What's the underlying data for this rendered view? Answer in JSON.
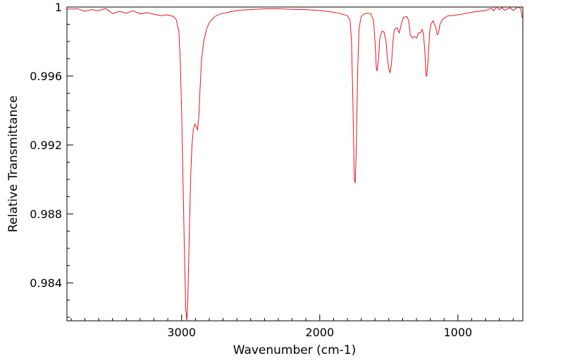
{
  "chart_data": {
    "type": "line",
    "title": "",
    "xlabel": "Wavenumber (cm-1)",
    "ylabel": "Relative Transmittance",
    "xlim": [
      3830,
      530
    ],
    "ylim": [
      0.9818,
      1.0
    ],
    "x_reversed": true,
    "grid": false,
    "legend": "none",
    "x_ticks": [
      3000,
      2000,
      1000
    ],
    "x_tick_labels": [
      "3000",
      "2000",
      "1000"
    ],
    "x_minor_step": 100,
    "y_ticks": [
      1.0,
      0.996,
      0.992,
      0.988,
      0.984
    ],
    "y_tick_labels": [
      "1",
      "0.996",
      "0.992",
      "0.988",
      "0.984"
    ],
    "y_minor_step": 0.001,
    "series": [
      {
        "color": "#e8141c",
        "points": [
          [
            3830,
            0.99988
          ],
          [
            3750,
            0.9999
          ],
          [
            3700,
            0.99975
          ],
          [
            3650,
            0.99985
          ],
          [
            3600,
            0.99978
          ],
          [
            3550,
            0.99992
          ],
          [
            3500,
            0.99962
          ],
          [
            3450,
            0.99975
          ],
          [
            3400,
            0.99965
          ],
          [
            3350,
            0.99978
          ],
          [
            3300,
            0.9996
          ],
          [
            3250,
            0.99968
          ],
          [
            3200,
            0.99958
          ],
          [
            3150,
            0.9995
          ],
          [
            3100,
            0.99955
          ],
          [
            3060,
            0.99945
          ],
          [
            3040,
            0.9993
          ],
          [
            3020,
            0.9986
          ],
          [
            3010,
            0.997
          ],
          [
            3000,
            0.994
          ],
          [
            2990,
            0.99
          ],
          [
            2980,
            0.986
          ],
          [
            2970,
            0.9825
          ],
          [
            2962,
            0.9818
          ],
          [
            2955,
            0.983
          ],
          [
            2945,
            0.9865
          ],
          [
            2935,
            0.99
          ],
          [
            2925,
            0.992
          ],
          [
            2915,
            0.9929
          ],
          [
            2905,
            0.9932
          ],
          [
            2895,
            0.9931
          ],
          [
            2885,
            0.99285
          ],
          [
            2875,
            0.9937
          ],
          [
            2865,
            0.9955
          ],
          [
            2855,
            0.997
          ],
          [
            2840,
            0.998
          ],
          [
            2820,
            0.9987
          ],
          [
            2800,
            0.9991
          ],
          [
            2760,
            0.99945
          ],
          [
            2720,
            0.9996
          ],
          [
            2650,
            0.99972
          ],
          [
            2600,
            0.9998
          ],
          [
            2500,
            0.99985
          ],
          [
            2400,
            0.9999
          ],
          [
            2300,
            0.9999
          ],
          [
            2200,
            0.99987
          ],
          [
            2100,
            0.99985
          ],
          [
            2000,
            0.9998
          ],
          [
            1900,
            0.9997
          ],
          [
            1850,
            0.99962
          ],
          [
            1800,
            0.9995
          ],
          [
            1780,
            0.9992
          ],
          [
            1770,
            0.998
          ],
          [
            1760,
            0.9945
          ],
          [
            1750,
            0.99
          ],
          [
            1743,
            0.9898
          ],
          [
            1735,
            0.992
          ],
          [
            1725,
            0.9965
          ],
          [
            1715,
            0.9988
          ],
          [
            1700,
            0.99945
          ],
          [
            1680,
            0.9996
          ],
          [
            1650,
            0.99965
          ],
          [
            1630,
            0.9996
          ],
          [
            1610,
            0.9992
          ],
          [
            1600,
            0.998
          ],
          [
            1590,
            0.9964
          ],
          [
            1585,
            0.9963
          ],
          [
            1575,
            0.997
          ],
          [
            1565,
            0.9982
          ],
          [
            1550,
            0.9986
          ],
          [
            1535,
            0.99855
          ],
          [
            1520,
            0.998
          ],
          [
            1510,
            0.997
          ],
          [
            1500,
            0.9964
          ],
          [
            1490,
            0.9962
          ],
          [
            1480,
            0.9968
          ],
          [
            1470,
            0.998
          ],
          [
            1460,
            0.9987
          ],
          [
            1440,
            0.9988
          ],
          [
            1425,
            0.9985
          ],
          [
            1410,
            0.999
          ],
          [
            1395,
            0.9994
          ],
          [
            1370,
            0.99945
          ],
          [
            1355,
            0.9992
          ],
          [
            1345,
            0.9984
          ],
          [
            1330,
            0.9982
          ],
          [
            1315,
            0.9983
          ],
          [
            1300,
            0.9982
          ],
          [
            1285,
            0.9985
          ],
          [
            1270,
            0.9985
          ],
          [
            1260,
            0.9987
          ],
          [
            1250,
            0.9985
          ],
          [
            1240,
            0.9975
          ],
          [
            1230,
            0.996
          ],
          [
            1225,
            0.996
          ],
          [
            1215,
            0.997
          ],
          [
            1205,
            0.9985
          ],
          [
            1195,
            0.999
          ],
          [
            1180,
            0.9992
          ],
          [
            1160,
            0.9988
          ],
          [
            1150,
            0.9984
          ],
          [
            1140,
            0.9985
          ],
          [
            1130,
            0.999
          ],
          [
            1110,
            0.9993
          ],
          [
            1090,
            0.9994
          ],
          [
            1070,
            0.9995
          ],
          [
            1040,
            0.9995
          ],
          [
            1000,
            0.99955
          ],
          [
            950,
            0.99962
          ],
          [
            900,
            0.9997
          ],
          [
            850,
            0.99975
          ],
          [
            800,
            0.9998
          ],
          [
            760,
            0.99992
          ],
          [
            740,
            0.99978
          ],
          [
            720,
            1.0
          ],
          [
            700,
            0.99985
          ],
          [
            680,
            0.99996
          ],
          [
            660,
            0.9998
          ],
          [
            640,
            0.9999
          ],
          [
            620,
            0.99995
          ],
          [
            600,
            0.9998
          ],
          [
            580,
            0.99992
          ],
          [
            560,
            1.0
          ],
          [
            545,
            0.9999
          ],
          [
            535,
            0.9994
          ],
          [
            530,
            0.9993
          ]
        ]
      }
    ]
  }
}
